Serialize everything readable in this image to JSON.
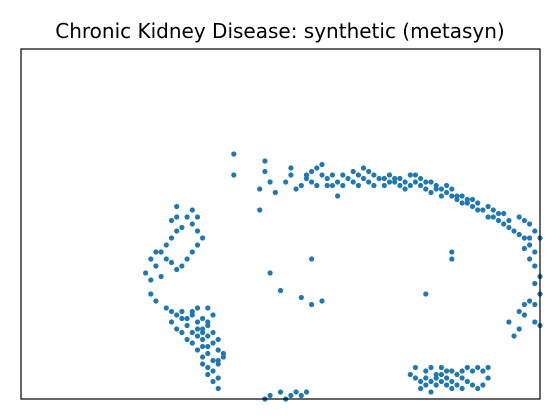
{
  "chart_data": {
    "type": "scatter",
    "title": "Chronic Kidney Disease: synthetic (metasyn)",
    "xlabel": "",
    "ylabel": "",
    "xlim": [
      0,
      100
    ],
    "ylim": [
      0,
      100
    ],
    "grid": false,
    "axis_ticks": false,
    "marker_color": "#1f77b4",
    "series": [
      {
        "points": [
          [
            41,
            70
          ],
          [
            41,
            64
          ],
          [
            47,
            68
          ],
          [
            47,
            65
          ],
          [
            48,
            62
          ],
          [
            49,
            59
          ],
          [
            52,
            66
          ],
          [
            52,
            64
          ],
          [
            53,
            60
          ],
          [
            51,
            62
          ],
          [
            54,
            61
          ],
          [
            55,
            63
          ],
          [
            55,
            64
          ],
          [
            56,
            62
          ],
          [
            57,
            61
          ],
          [
            58,
            64
          ],
          [
            59,
            63
          ],
          [
            60,
            61
          ],
          [
            61,
            62
          ],
          [
            62,
            61
          ],
          [
            63,
            63
          ],
          [
            64,
            62
          ],
          [
            65,
            61
          ],
          [
            66,
            63
          ],
          [
            67,
            62
          ],
          [
            68,
            64
          ],
          [
            69,
            63
          ],
          [
            70,
            61
          ],
          [
            71,
            62
          ],
          [
            72,
            62
          ],
          [
            73,
            61
          ],
          [
            73,
            63
          ],
          [
            74,
            60
          ],
          [
            75,
            61
          ],
          [
            76,
            62
          ],
          [
            77,
            61
          ],
          [
            78,
            60
          ],
          [
            79,
            59
          ],
          [
            80,
            60
          ],
          [
            81,
            58
          ],
          [
            82,
            59
          ],
          [
            83,
            58
          ],
          [
            84,
            57
          ],
          [
            85,
            56
          ],
          [
            86,
            56
          ],
          [
            87,
            55
          ],
          [
            88,
            54
          ],
          [
            89,
            54
          ],
          [
            90,
            52
          ],
          [
            91,
            52
          ],
          [
            92,
            51
          ],
          [
            93,
            50
          ],
          [
            94,
            49
          ],
          [
            95,
            48
          ],
          [
            96,
            47
          ],
          [
            97,
            46
          ],
          [
            98,
            44
          ],
          [
            99,
            42
          ],
          [
            98,
            40
          ],
          [
            99,
            38
          ],
          [
            100,
            35
          ],
          [
            99,
            33
          ],
          [
            98,
            28
          ],
          [
            97,
            27
          ],
          [
            96,
            25
          ],
          [
            97,
            24
          ],
          [
            99,
            22
          ],
          [
            100,
            21
          ],
          [
            96,
            20
          ],
          [
            95,
            18
          ],
          [
            94,
            22
          ],
          [
            59,
            61
          ],
          [
            61,
            58
          ],
          [
            56,
            65
          ],
          [
            57,
            66
          ],
          [
            58,
            67
          ],
          [
            60,
            64
          ],
          [
            62,
            64
          ],
          [
            64,
            65
          ],
          [
            65,
            64
          ],
          [
            66,
            66
          ],
          [
            67,
            65
          ],
          [
            68,
            61
          ],
          [
            70,
            63
          ],
          [
            71,
            64
          ],
          [
            72,
            63
          ],
          [
            74,
            62
          ],
          [
            75,
            64
          ],
          [
            76,
            64
          ],
          [
            77,
            63
          ],
          [
            78,
            62
          ],
          [
            79,
            62
          ],
          [
            80,
            61
          ],
          [
            81,
            60
          ],
          [
            82,
            61
          ],
          [
            83,
            60
          ],
          [
            84,
            58
          ],
          [
            85,
            58
          ],
          [
            86,
            57
          ],
          [
            87,
            57
          ],
          [
            88,
            56
          ],
          [
            90,
            55
          ],
          [
            91,
            54
          ],
          [
            92,
            53
          ],
          [
            93,
            53
          ],
          [
            94,
            51
          ],
          [
            96,
            52
          ],
          [
            97,
            51
          ],
          [
            98,
            50
          ],
          [
            99,
            48
          ],
          [
            100,
            46
          ],
          [
            97,
            43
          ],
          [
            98,
            46
          ],
          [
            100,
            30
          ],
          [
            99,
            27
          ],
          [
            30,
            52
          ],
          [
            29,
            51
          ],
          [
            30,
            48
          ],
          [
            29,
            46
          ],
          [
            28,
            44
          ],
          [
            27,
            42
          ],
          [
            28,
            40
          ],
          [
            26,
            42
          ],
          [
            25,
            40
          ],
          [
            26,
            38
          ],
          [
            24,
            36
          ],
          [
            25,
            34
          ],
          [
            27,
            35
          ],
          [
            29,
            39
          ],
          [
            30,
            37
          ],
          [
            31,
            38
          ],
          [
            32,
            40
          ],
          [
            33,
            42
          ],
          [
            34,
            44
          ],
          [
            35,
            46
          ],
          [
            34,
            48
          ],
          [
            33,
            50
          ],
          [
            32,
            52
          ],
          [
            31,
            49
          ],
          [
            33,
            54
          ],
          [
            34,
            52
          ],
          [
            30,
            55
          ],
          [
            25,
            30
          ],
          [
            26,
            28
          ],
          [
            28,
            26
          ],
          [
            29,
            22
          ],
          [
            30,
            20
          ],
          [
            31,
            19
          ],
          [
            32,
            21
          ],
          [
            33,
            24
          ],
          [
            34,
            22
          ],
          [
            35,
            20
          ],
          [
            36,
            18
          ],
          [
            35,
            15
          ],
          [
            36,
            13
          ],
          [
            37,
            11
          ],
          [
            38,
            10
          ],
          [
            37,
            8
          ],
          [
            38,
            6
          ],
          [
            36,
            9
          ],
          [
            35,
            12
          ],
          [
            34,
            14
          ],
          [
            33,
            16
          ],
          [
            32,
            17
          ],
          [
            31,
            23
          ],
          [
            30,
            24
          ],
          [
            29,
            25
          ],
          [
            33,
            25
          ],
          [
            34,
            26
          ],
          [
            35,
            23
          ],
          [
            36,
            21
          ],
          [
            37,
            19
          ],
          [
            37,
            16
          ],
          [
            38,
            14
          ],
          [
            39,
            12
          ],
          [
            38,
            17
          ],
          [
            36,
            7
          ],
          [
            37,
            5
          ],
          [
            38,
            3
          ],
          [
            34,
            18
          ],
          [
            35,
            19
          ],
          [
            36,
            22
          ],
          [
            37,
            24
          ],
          [
            39,
            13
          ],
          [
            38,
            11
          ],
          [
            36,
            15
          ],
          [
            35,
            10
          ],
          [
            35,
            17
          ],
          [
            34,
            20
          ],
          [
            33,
            19
          ],
          [
            32,
            23
          ],
          [
            31,
            25
          ],
          [
            36,
            26
          ],
          [
            46,
            60
          ],
          [
            46,
            54
          ],
          [
            48,
            36
          ],
          [
            50,
            31
          ],
          [
            54,
            29
          ],
          [
            56,
            27
          ],
          [
            58,
            28
          ],
          [
            56,
            40
          ],
          [
            78,
            30
          ],
          [
            83,
            42
          ],
          [
            83,
            40
          ],
          [
            75,
            7
          ],
          [
            76,
            6
          ],
          [
            77,
            5
          ],
          [
            78,
            4
          ],
          [
            79,
            5
          ],
          [
            80,
            6
          ],
          [
            81,
            7
          ],
          [
            82,
            6
          ],
          [
            83,
            5
          ],
          [
            84,
            7
          ],
          [
            85,
            8
          ],
          [
            86,
            9
          ],
          [
            87,
            8
          ],
          [
            88,
            9
          ],
          [
            89,
            8
          ],
          [
            90,
            9
          ],
          [
            77,
            3
          ],
          [
            78,
            8
          ],
          [
            79,
            9
          ],
          [
            80,
            7
          ],
          [
            81,
            5
          ],
          [
            82,
            4
          ],
          [
            83,
            3
          ],
          [
            78,
            6
          ],
          [
            80,
            4
          ],
          [
            84,
            4
          ],
          [
            85,
            6
          ],
          [
            86,
            5
          ],
          [
            87,
            4
          ],
          [
            88,
            3
          ],
          [
            89,
            4
          ],
          [
            90,
            6
          ],
          [
            81,
            9
          ],
          [
            82,
            8
          ],
          [
            85,
            3
          ],
          [
            79,
            2
          ],
          [
            83,
            8
          ],
          [
            76,
            9
          ],
          [
            48,
            1
          ],
          [
            50,
            2
          ],
          [
            52,
            1
          ],
          [
            53,
            2
          ],
          [
            54,
            1
          ],
          [
            55,
            2
          ],
          [
            47,
            0
          ],
          [
            51,
            0
          ]
        ]
      }
    ]
  }
}
